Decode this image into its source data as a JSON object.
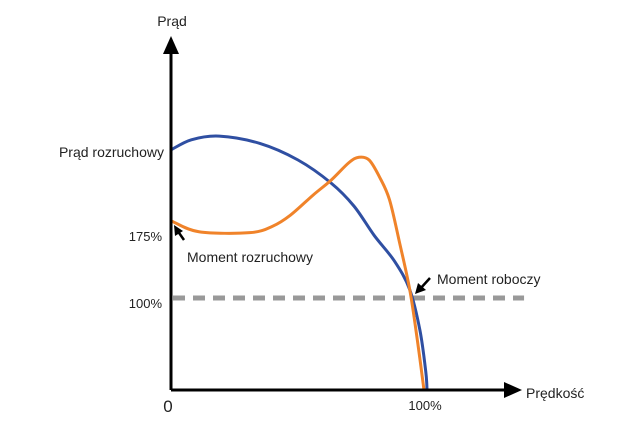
{
  "chart_data": {
    "type": "line",
    "title": "",
    "xlabel": "Prędkość",
    "ylabel": "Prąd",
    "xlim": [
      0,
      140
    ],
    "ylim": [
      0,
      380
    ],
    "grid": false,
    "x_ticks": [
      {
        "value": 0,
        "label": "0"
      },
      {
        "value": 100,
        "label": "100%"
      }
    ],
    "y_ticks": [
      {
        "value": 100,
        "label": "100%"
      },
      {
        "value": 175,
        "label": "175%"
      },
      {
        "value": 259,
        "label": "Prąd rozruchowy"
      }
    ],
    "series": [
      {
        "color": "#2f4fa2",
        "points": [
          [
            0,
            261
          ],
          [
            8,
            272
          ],
          [
            19,
            276
          ],
          [
            35,
            268
          ],
          [
            50,
            250
          ],
          [
            63,
            225
          ],
          [
            72,
            200
          ],
          [
            80,
            168
          ],
          [
            88,
            140
          ],
          [
            94,
            109
          ],
          [
            98,
            65
          ],
          [
            100.3,
            20
          ],
          [
            100.8,
            0
          ]
        ]
      },
      {
        "color": "#f0832a",
        "points": [
          [
            0,
            184
          ],
          [
            11,
            172
          ],
          [
            31,
            171
          ],
          [
            40,
            178
          ],
          [
            47,
            190
          ],
          [
            56,
            212
          ],
          [
            63,
            228
          ],
          [
            70,
            247
          ],
          [
            74,
            253
          ],
          [
            78,
            250
          ],
          [
            82,
            232
          ],
          [
            86,
            207
          ],
          [
            90,
            160
          ],
          [
            94,
            109
          ],
          [
            97,
            54
          ],
          [
            99.6,
            0
          ]
        ]
      }
    ],
    "reference_line": {
      "y": 100,
      "x_range": [
        0,
        139
      ],
      "color": "#999999",
      "style": "dashed"
    },
    "annotations": [
      {
        "text": "Moment rozruchowy",
        "x": 0,
        "y": 184
      },
      {
        "text": "Moment roboczy",
        "x": 94,
        "y": 109
      }
    ]
  }
}
